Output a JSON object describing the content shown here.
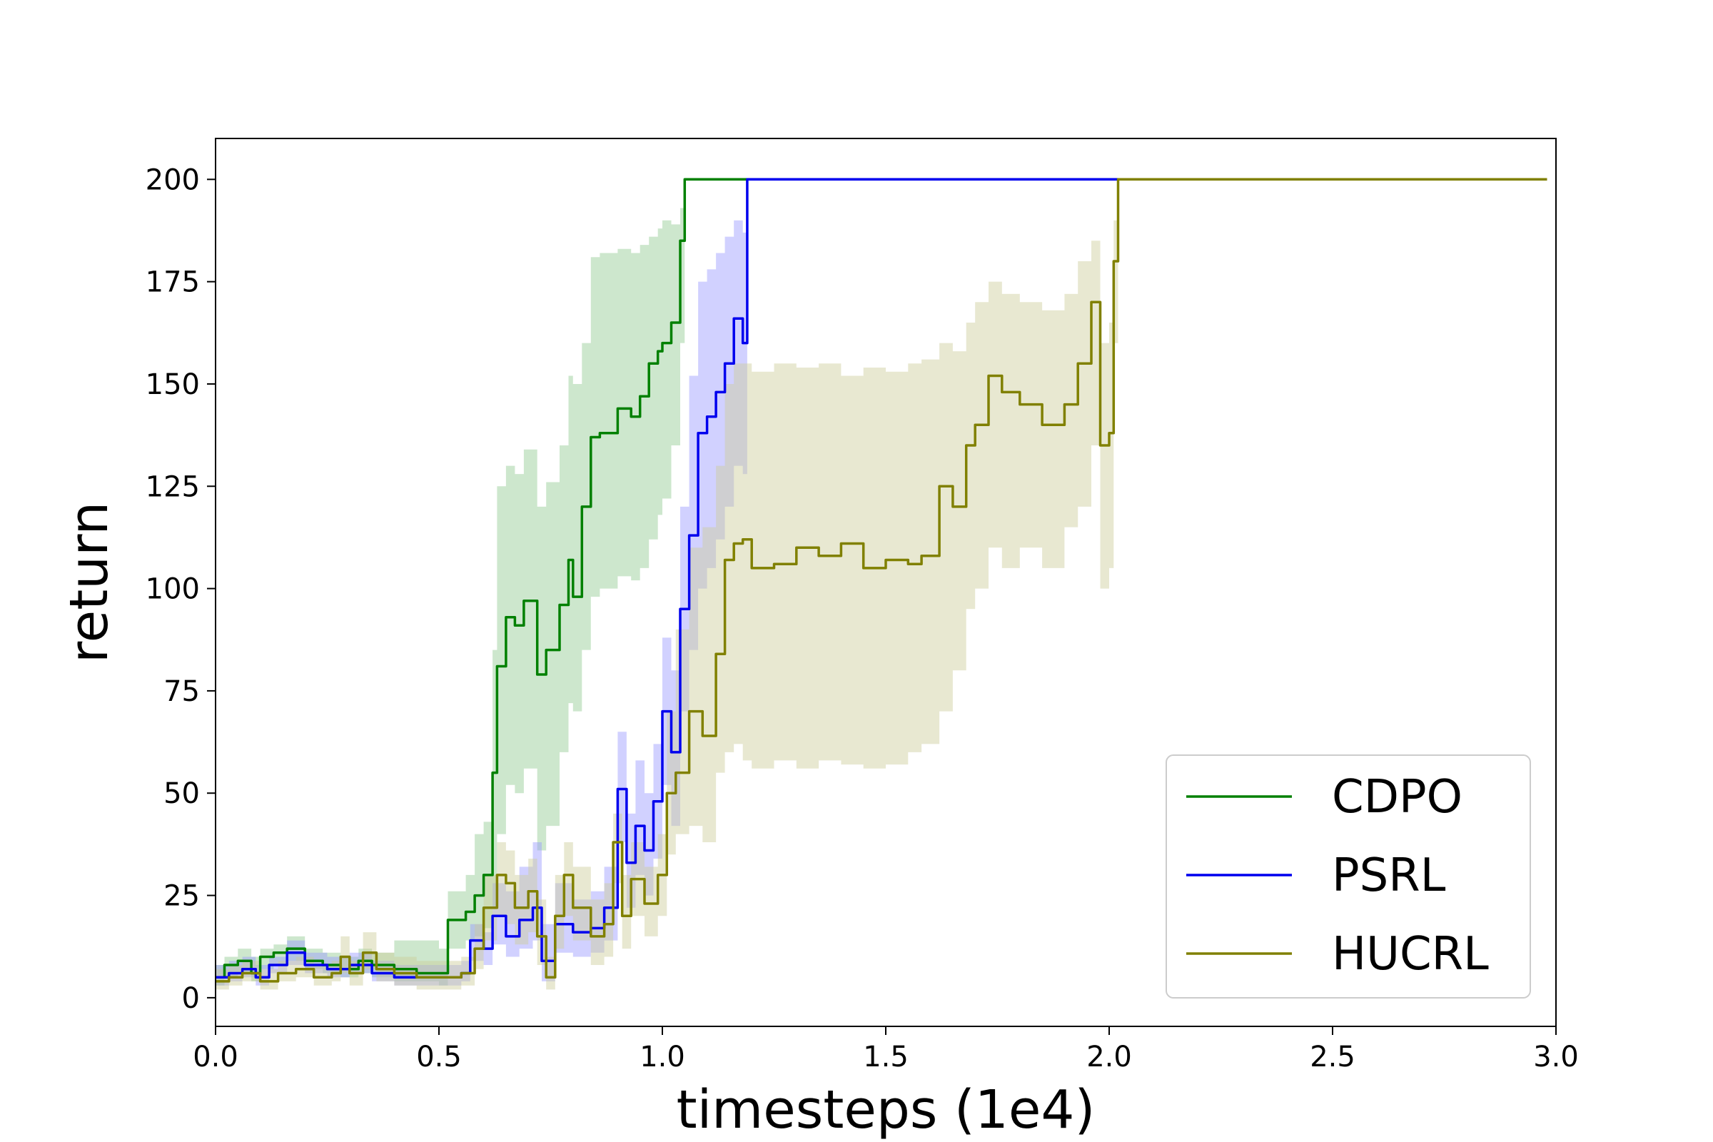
{
  "chart_data": {
    "type": "line",
    "title": "",
    "xlabel": "timesteps (1e4)",
    "ylabel": "return",
    "xlim": [
      0,
      3.0
    ],
    "ylim": [
      -7,
      210
    ],
    "xticks": [
      0.0,
      0.5,
      1.0,
      1.5,
      2.0,
      2.5,
      3.0
    ],
    "xtick_labels": [
      "0.0",
      "0.5",
      "1.0",
      "1.5",
      "2.0",
      "2.5",
      "3.0"
    ],
    "yticks": [
      0,
      25,
      50,
      75,
      100,
      125,
      150,
      175,
      200
    ],
    "ytick_labels": [
      "0",
      "25",
      "50",
      "75",
      "100",
      "125",
      "150",
      "175",
      "200"
    ],
    "grid": false,
    "legend": "lower-right",
    "series": [
      {
        "name": "CDPO",
        "color": "#008000",
        "band_color": "#90c990",
        "x": [
          0.0,
          0.02,
          0.05,
          0.08,
          0.1,
          0.13,
          0.16,
          0.2,
          0.24,
          0.28,
          0.32,
          0.35,
          0.4,
          0.45,
          0.5,
          0.52,
          0.56,
          0.58,
          0.6,
          0.62,
          0.63,
          0.65,
          0.67,
          0.69,
          0.72,
          0.74,
          0.77,
          0.79,
          0.8,
          0.82,
          0.84,
          0.86,
          0.9,
          0.93,
          0.95,
          0.97,
          0.99,
          1.0,
          1.02,
          1.04,
          1.05,
          1.1,
          1.2,
          1.5,
          2.0,
          2.5,
          2.98
        ],
        "y": [
          5,
          8,
          9,
          6,
          10,
          11,
          12,
          9,
          8,
          7,
          9,
          8,
          7,
          6,
          6,
          19,
          21,
          25,
          30,
          55,
          81,
          93,
          91,
          97,
          79,
          85,
          96,
          107,
          98,
          120,
          137,
          138,
          144,
          142,
          147,
          155,
          158,
          160,
          165,
          185,
          200,
          200,
          200,
          200,
          200,
          200,
          200
        ],
        "upper": [
          8,
          10,
          12,
          10,
          12,
          13,
          15,
          12,
          11,
          10,
          12,
          11,
          14,
          14,
          12,
          26,
          30,
          40,
          43,
          85,
          125,
          130,
          128,
          134,
          120,
          126,
          135,
          152,
          150,
          160,
          181,
          182,
          183,
          182,
          184,
          186,
          188,
          190,
          189,
          193,
          200,
          200,
          200,
          200,
          200,
          200,
          200
        ],
        "lower": [
          3,
          5,
          6,
          4,
          7,
          8,
          9,
          7,
          6,
          5,
          6,
          5,
          4,
          4,
          3,
          12,
          14,
          15,
          17,
          22,
          40,
          52,
          50,
          56,
          36,
          42,
          60,
          72,
          70,
          85,
          98,
          100,
          103,
          102,
          105,
          112,
          118,
          122,
          135,
          160,
          200,
          200,
          200,
          200,
          200,
          200,
          200
        ]
      },
      {
        "name": "PSRL",
        "color": "#0000ee",
        "band_color": "#9999ff",
        "x": [
          0.0,
          0.03,
          0.06,
          0.09,
          0.12,
          0.16,
          0.2,
          0.25,
          0.3,
          0.35,
          0.4,
          0.45,
          0.5,
          0.55,
          0.57,
          0.6,
          0.62,
          0.65,
          0.68,
          0.71,
          0.73,
          0.76,
          0.8,
          0.84,
          0.87,
          0.9,
          0.92,
          0.94,
          0.96,
          0.98,
          1.0,
          1.02,
          1.04,
          1.06,
          1.08,
          1.1,
          1.12,
          1.14,
          1.16,
          1.18,
          1.19,
          1.2,
          1.5,
          2.0,
          2.5,
          2.98
        ],
        "y": [
          5,
          6,
          7,
          5,
          8,
          11,
          8,
          7,
          8,
          6,
          5,
          5,
          5,
          6,
          14,
          12,
          20,
          15,
          19,
          22,
          9,
          18,
          16,
          17,
          22,
          51,
          33,
          42,
          36,
          48,
          70,
          60,
          95,
          113,
          138,
          142,
          148,
          155,
          166,
          160,
          200,
          200,
          200,
          200,
          200,
          200
        ],
        "upper": [
          8,
          9,
          10,
          8,
          10,
          14,
          11,
          10,
          11,
          9,
          8,
          8,
          8,
          9,
          18,
          16,
          28,
          26,
          32,
          38,
          18,
          28,
          24,
          26,
          32,
          65,
          45,
          58,
          50,
          62,
          88,
          80,
          120,
          152,
          175,
          178,
          182,
          186,
          190,
          187,
          200,
          200,
          200,
          200,
          200,
          200
        ],
        "lower": [
          3,
          4,
          5,
          3,
          6,
          8,
          6,
          5,
          6,
          4,
          3,
          3,
          3,
          4,
          9,
          8,
          13,
          10,
          12,
          14,
          4,
          11,
          10,
          11,
          14,
          38,
          22,
          30,
          25,
          34,
          52,
          42,
          70,
          85,
          100,
          105,
          112,
          120,
          130,
          128,
          200,
          200,
          200,
          200,
          200,
          200
        ]
      },
      {
        "name": "HUCRL",
        "color": "#808000",
        "band_color": "#cccc99",
        "x": [
          0.0,
          0.03,
          0.06,
          0.1,
          0.14,
          0.18,
          0.22,
          0.26,
          0.28,
          0.3,
          0.33,
          0.36,
          0.4,
          0.45,
          0.5,
          0.55,
          0.58,
          0.6,
          0.63,
          0.65,
          0.67,
          0.7,
          0.72,
          0.74,
          0.76,
          0.78,
          0.8,
          0.84,
          0.87,
          0.89,
          0.91,
          0.93,
          0.96,
          0.99,
          1.01,
          1.03,
          1.06,
          1.09,
          1.12,
          1.14,
          1.16,
          1.18,
          1.2,
          1.25,
          1.3,
          1.35,
          1.4,
          1.45,
          1.5,
          1.55,
          1.58,
          1.62,
          1.65,
          1.68,
          1.7,
          1.73,
          1.76,
          1.8,
          1.85,
          1.9,
          1.93,
          1.96,
          1.98,
          2.0,
          2.01,
          2.02,
          2.5,
          2.98
        ],
        "y": [
          4,
          5,
          6,
          4,
          6,
          7,
          5,
          6,
          10,
          6,
          11,
          7,
          6,
          5,
          5,
          6,
          12,
          22,
          30,
          28,
          22,
          26,
          15,
          5,
          20,
          30,
          22,
          15,
          18,
          38,
          20,
          29,
          23,
          30,
          50,
          55,
          70,
          64,
          84,
          107,
          111,
          112,
          105,
          106,
          110,
          108,
          111,
          105,
          107,
          106,
          108,
          125,
          120,
          135,
          140,
          152,
          148,
          145,
          140,
          145,
          155,
          170,
          135,
          138,
          180,
          200,
          200,
          200
        ],
        "upper": [
          7,
          8,
          9,
          7,
          9,
          10,
          8,
          9,
          15,
          9,
          16,
          11,
          10,
          9,
          9,
          10,
          18,
          30,
          38,
          36,
          30,
          34,
          24,
          10,
          30,
          38,
          32,
          24,
          28,
          45,
          30,
          38,
          32,
          40,
          70,
          90,
          110,
          115,
          130,
          150,
          155,
          155,
          153,
          155,
          154,
          155,
          152,
          154,
          153,
          155,
          156,
          160,
          158,
          165,
          170,
          175,
          172,
          170,
          168,
          172,
          180,
          185,
          160,
          165,
          190,
          200,
          200,
          200
        ],
        "lower": [
          2,
          3,
          4,
          2,
          4,
          5,
          3,
          4,
          6,
          3,
          7,
          4,
          3,
          2,
          2,
          3,
          7,
          14,
          20,
          18,
          13,
          16,
          8,
          2,
          12,
          20,
          14,
          8,
          10,
          28,
          12,
          20,
          15,
          20,
          35,
          40,
          42,
          38,
          55,
          60,
          62,
          58,
          56,
          58,
          56,
          58,
          57,
          56,
          57,
          60,
          62,
          70,
          80,
          95,
          100,
          110,
          105,
          110,
          105,
          115,
          120,
          135,
          100,
          105,
          160,
          200,
          200,
          200
        ]
      }
    ]
  }
}
